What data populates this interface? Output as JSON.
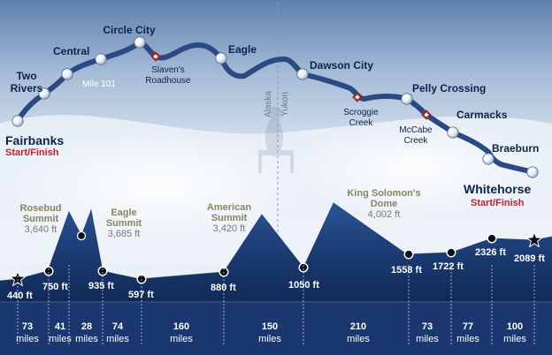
{
  "colors": {
    "trail": "#2b4a83",
    "profile": "#1d3f78",
    "profile_dark": "#0e2652",
    "start_finish": "#c0202a",
    "summit_label": "#8a8560",
    "route_label": "#0e2347",
    "checkpoint_marker": "#9a2a22"
  },
  "route_map": {
    "checkpoints": [
      {
        "id": "fairbanks",
        "label": "Fairbanks",
        "lines": [
          "Fairbanks"
        ],
        "sub": "Start/Finish",
        "kind": "main",
        "icon": "circle-marker"
      },
      {
        "id": "two-rivers",
        "label": "Two Rivers",
        "lines": [
          "Two",
          "Rivers"
        ],
        "kind": "main",
        "icon": "circle-marker"
      },
      {
        "id": "central",
        "label": "Central",
        "lines": [
          "Central"
        ],
        "kind": "main",
        "icon": "circle-marker"
      },
      {
        "id": "mile-101",
        "label": "Mile 101",
        "lines": [
          "Mile 101"
        ],
        "kind": "road",
        "icon": "circle-marker"
      },
      {
        "id": "circle-city",
        "label": "Circle City",
        "lines": [
          "Circle City"
        ],
        "kind": "main",
        "icon": "circle-marker"
      },
      {
        "id": "slavens-roadhouse",
        "label": "Slaven's Roadhouse",
        "lines": [
          "Slaven's",
          "Roadhouse"
        ],
        "kind": "station",
        "icon": "diamond-marker"
      },
      {
        "id": "eagle",
        "label": "Eagle",
        "lines": [
          "Eagle"
        ],
        "kind": "main",
        "icon": "circle-marker"
      },
      {
        "id": "dawson-city",
        "label": "Dawson City",
        "lines": [
          "Dawson City"
        ],
        "kind": "main",
        "icon": "circle-marker"
      },
      {
        "id": "scroggie-creek",
        "label": "Scroggie Creek",
        "lines": [
          "Scroggie",
          "Creek"
        ],
        "kind": "station",
        "icon": "diamond-marker"
      },
      {
        "id": "pelly-crossing",
        "label": "Pelly Crossing",
        "lines": [
          "Pelly Crossing"
        ],
        "kind": "main",
        "icon": "circle-marker"
      },
      {
        "id": "mccabe-creek",
        "label": "McCabe Creek",
        "lines": [
          "McCabe",
          "Creek"
        ],
        "kind": "station",
        "icon": "diamond-marker"
      },
      {
        "id": "carmacks",
        "label": "Carmacks",
        "lines": [
          "Carmacks"
        ],
        "kind": "main",
        "icon": "circle-marker"
      },
      {
        "id": "braeburn",
        "label": "Braeburn",
        "lines": [
          "Braeburn"
        ],
        "kind": "main",
        "icon": "circle-marker"
      },
      {
        "id": "whitehorse",
        "label": "Whitehorse",
        "lines": [
          "Whitehorse"
        ],
        "sub": "Start/Finish",
        "kind": "main",
        "icon": "circle-marker"
      }
    ],
    "border": {
      "left": "Alaska",
      "right": "Yukon"
    }
  },
  "elevation_profile": {
    "points": [
      {
        "label": "440 ft",
        "icon": "star-marker"
      },
      {
        "label": "750 ft",
        "icon": "dot-marker"
      },
      {
        "label": "935 ft",
        "icon": "dot-marker"
      },
      {
        "label": "597 ft",
        "icon": "dot-marker"
      },
      {
        "label": "880 ft",
        "icon": "dot-marker"
      },
      {
        "label": "1050 ft",
        "icon": "dot-marker"
      },
      {
        "label": "1558 ft",
        "icon": "dot-marker"
      },
      {
        "label": "1722 ft",
        "icon": "dot-marker"
      },
      {
        "label": "2326 ft",
        "icon": "dot-marker"
      },
      {
        "label": "2089 ft",
        "icon": "star-marker"
      }
    ],
    "summits": [
      {
        "name": "Rosebud Summit",
        "lines": [
          "Rosebud",
          "Summit"
        ],
        "elevation": "3,640 ft"
      },
      {
        "name": "Eagle Summit",
        "lines": [
          "Eagle",
          "Summit"
        ],
        "elevation": "3,685 ft"
      },
      {
        "name": "American Summit",
        "lines": [
          "American",
          "Summit"
        ],
        "elevation": "3,420 ft"
      },
      {
        "name": "King Solomon's Dome",
        "lines": [
          "King Solomon's",
          "Dome"
        ],
        "elevation": "4,002 ft"
      }
    ]
  },
  "distances": {
    "unit": "miles",
    "segments": [
      {
        "value": "73"
      },
      {
        "value": "41"
      },
      {
        "value": "28"
      },
      {
        "value": "74"
      },
      {
        "value": "160"
      },
      {
        "value": "150"
      },
      {
        "value": "210"
      },
      {
        "value": "73"
      },
      {
        "value": "77"
      },
      {
        "value": "100"
      }
    ]
  }
}
